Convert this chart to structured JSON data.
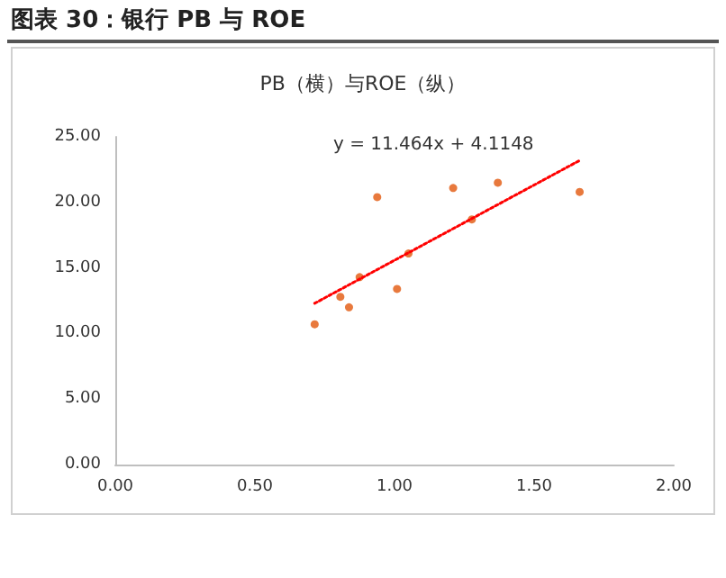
{
  "chart_data": {
    "type": "scatter",
    "title": "图表 30：银行 PB 与 ROE",
    "subtitle": "PB（横）与ROE（纵）",
    "annotations": [
      "y = 11.464x + 4.1148"
    ],
    "series": [
      {
        "type": "scatter",
        "color": "#e2580c",
        "marker": "circle",
        "x": [
          0.714,
          0.806,
          0.837,
          0.875,
          0.938,
          1.009,
          1.05,
          1.21,
          1.277,
          1.37,
          1.663
        ],
        "values": [
          10.7,
          12.8,
          12.0,
          14.3,
          20.4,
          13.4,
          16.1,
          21.1,
          18.7,
          21.5,
          20.8
        ]
      },
      {
        "type": "line",
        "color": "#ff0000",
        "line_style": "dotted",
        "marker": "none",
        "x": [
          0.714,
          1.663
        ],
        "values": [
          12.3,
          23.2
        ]
      }
    ],
    "xlim": [
      0,
      2
    ],
    "xticks": [
      {
        "value": 0,
        "label": "0.00"
      },
      {
        "value": 0.5,
        "label": "0.50"
      },
      {
        "value": 1,
        "label": "1.00"
      },
      {
        "value": 1.5,
        "label": "1.50"
      },
      {
        "value": 2,
        "label": "2.00"
      }
    ],
    "ylim": [
      0,
      25
    ],
    "yticks": [
      {
        "value": 0,
        "label": "0.00"
      },
      {
        "value": 5,
        "label": "5.00"
      },
      {
        "value": 10,
        "label": "10.00"
      },
      {
        "value": 15,
        "label": "15.00"
      },
      {
        "value": 20,
        "label": "20.00"
      },
      {
        "value": 25,
        "label": "25.00"
      }
    ],
    "grid": false
  }
}
